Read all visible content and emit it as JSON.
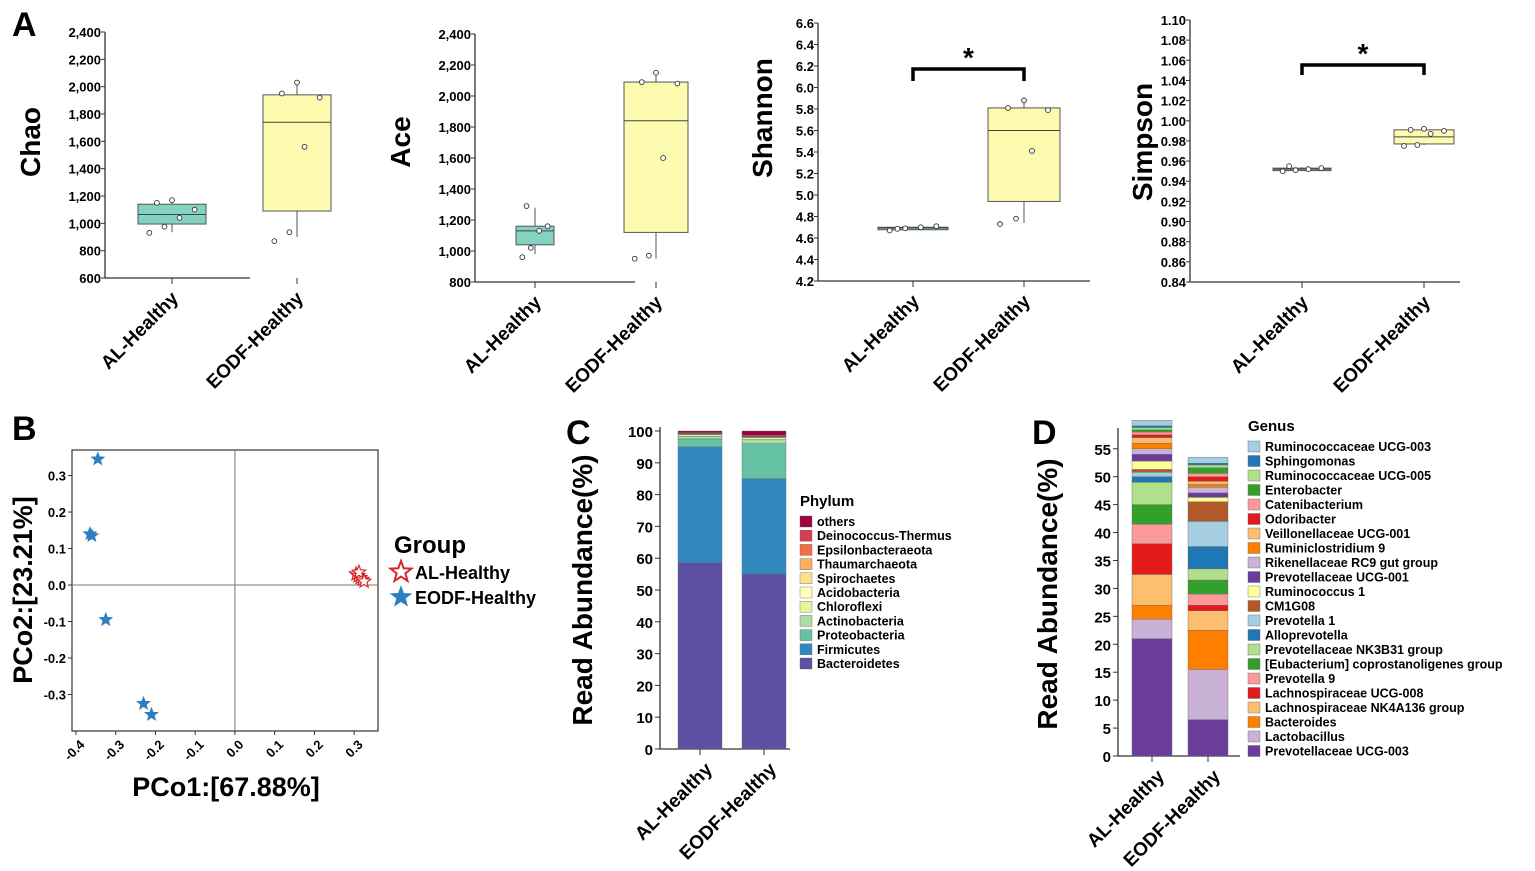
{
  "panels": {
    "A": "A",
    "B": "B",
    "C": "C",
    "D": "D"
  },
  "colors": {
    "al_box": "#84d2c2",
    "eodf_box": "#fdfbb0",
    "al_star": "#d62728",
    "eodf_star": "#2f7ebf"
  },
  "chart_data": [
    {
      "id": "chao",
      "type": "box",
      "ylabel": "Chao",
      "ylim": [
        600,
        2400
      ],
      "ticks": [
        600,
        800,
        1000,
        1200,
        1400,
        1600,
        1800,
        2000,
        2200,
        2400
      ],
      "categories": [
        "AL-Healthy",
        "EODF-Healthy"
      ],
      "boxes": [
        {
          "name": "AL-Healthy",
          "min": 935,
          "q1": 995,
          "median": 1065,
          "q3": 1140,
          "max": 1160,
          "points": [
            930,
            975,
            1040,
            1100,
            1150,
            1170
          ]
        },
        {
          "name": "EODF-Healthy",
          "min": 900,
          "q1": 1090,
          "median": 1740,
          "q3": 1940,
          "max": 2020,
          "points": [
            870,
            935,
            1560,
            1920,
            1950,
            2030
          ]
        }
      ]
    },
    {
      "id": "ace",
      "type": "box",
      "ylabel": "Ace",
      "ylim": [
        800,
        2400
      ],
      "ticks": [
        800,
        1000,
        1200,
        1400,
        1600,
        1800,
        2000,
        2200,
        2400
      ],
      "categories": [
        "AL-Healthy",
        "EODF-Healthy"
      ],
      "boxes": [
        {
          "name": "AL-Healthy",
          "min": 980,
          "q1": 1040,
          "median": 1130,
          "q3": 1160,
          "max": 1280,
          "points": [
            960,
            1020,
            1130,
            1160,
            1290
          ]
        },
        {
          "name": "EODF-Healthy",
          "min": 950,
          "q1": 1120,
          "median": 1840,
          "q3": 2090,
          "max": 2150,
          "points": [
            950,
            970,
            1600,
            2080,
            2090,
            2150
          ]
        }
      ]
    },
    {
      "id": "shannon",
      "type": "box",
      "ylabel": "Shannon",
      "ylim": [
        4.2,
        6.6
      ],
      "ticks": [
        "4.2",
        "4.4",
        "4.6",
        "4.8",
        "5.0",
        "5.2",
        "5.4",
        "5.6",
        "5.8",
        "6.0",
        "6.2",
        "6.4",
        "6.6"
      ],
      "categories": [
        "AL-Healthy",
        "EODF-Healthy"
      ],
      "significance": "*",
      "boxes": [
        {
          "name": "AL-Healthy",
          "min": 4.685,
          "q1": 4.685,
          "median": 4.693,
          "q3": 4.7,
          "max": 4.705,
          "points": [
            4.67,
            4.69,
            4.7,
            4.71,
            4.685
          ]
        },
        {
          "name": "EODF-Healthy",
          "min": 4.74,
          "q1": 4.94,
          "median": 5.6,
          "q3": 5.81,
          "max": 5.87,
          "points": [
            4.73,
            4.78,
            5.41,
            5.79,
            5.81,
            5.88
          ]
        }
      ]
    },
    {
      "id": "simpson",
      "type": "box",
      "ylabel": "Simpson",
      "ylim": [
        0.84,
        1.1
      ],
      "ticks": [
        "0.84",
        "0.86",
        "0.88",
        "0.90",
        "0.92",
        "0.94",
        "0.96",
        "0.98",
        "1.00",
        "1.02",
        "1.04",
        "1.06",
        "1.08",
        "1.10"
      ],
      "categories": [
        "AL-Healthy",
        "EODF-Healthy"
      ],
      "significance": "*",
      "boxes": [
        {
          "name": "AL-Healthy",
          "min": 0.951,
          "q1": 0.951,
          "median": 0.952,
          "q3": 0.953,
          "max": 0.954,
          "points": [
            0.95,
            0.951,
            0.952,
            0.953,
            0.955
          ]
        },
        {
          "name": "EODF-Healthy",
          "min": 0.976,
          "q1": 0.977,
          "median": 0.984,
          "q3": 0.991,
          "max": 0.992,
          "points": [
            0.975,
            0.976,
            0.987,
            0.99,
            0.991,
            0.992
          ]
        }
      ]
    },
    {
      "id": "pcoa",
      "type": "scatter",
      "xlabel": "PCo1:[67.88%]",
      "ylabel": "PCo2:[23.21%]",
      "xlim": [
        -0.41,
        0.36
      ],
      "ylim": [
        -0.4,
        0.37
      ],
      "xticks": [
        "-0.4",
        "-0.3",
        "-0.2",
        "-0.1",
        "0.0",
        "0.1",
        "0.2",
        "0.3"
      ],
      "yticks": [
        "-0.3",
        "-0.2",
        "-0.1",
        "0.0",
        "0.1",
        "0.2",
        "0.3"
      ],
      "legend_title": "Group",
      "series": [
        {
          "name": "AL-Healthy",
          "color": "#d62728",
          "marker": "open-star",
          "x": [
            0.305,
            0.31,
            0.315,
            0.32,
            0.312,
            0.325
          ],
          "y": [
            0.03,
            0.025,
            0.02,
            0.015,
            0.035,
            0.01
          ]
        },
        {
          "name": "EODF-Healthy",
          "color": "#2f7ebf",
          "marker": "filled-star",
          "x": [
            -0.345,
            -0.365,
            -0.36,
            -0.325,
            -0.23,
            -0.21
          ],
          "y": [
            0.345,
            0.14,
            0.135,
            -0.095,
            -0.325,
            -0.355
          ]
        }
      ]
    },
    {
      "id": "phylum",
      "type": "bar",
      "stacked": true,
      "ylabel": "Read Abundance(%)",
      "ylim": [
        0,
        100
      ],
      "yticks": [
        "0",
        "10",
        "20",
        "30",
        "40",
        "50",
        "60",
        "70",
        "80",
        "90",
        "100"
      ],
      "categories": [
        "AL-Healthy",
        "EODF-Healthy"
      ],
      "legend_title": "Phylum",
      "series": [
        {
          "name": "Bacteroidetes",
          "color": "#5e4fa2",
          "values": [
            58.5,
            55.0
          ]
        },
        {
          "name": "Firmicutes",
          "color": "#3288bd",
          "values": [
            36.5,
            30.0
          ]
        },
        {
          "name": "Proteobacteria",
          "color": "#66c2a5",
          "values": [
            2.5,
            11.0
          ]
        },
        {
          "name": "Actinobacteria",
          "color": "#abdda4",
          "values": [
            0.8,
            1.3
          ]
        },
        {
          "name": "Chloroflexi",
          "color": "#e6f598",
          "values": [
            0.5,
            0.6
          ]
        },
        {
          "name": "Acidobacteria",
          "color": "#ffffbf",
          "values": [
            0.2,
            0.2
          ]
        },
        {
          "name": "Spirochaetes",
          "color": "#fee08b",
          "values": [
            0.1,
            0.1
          ]
        },
        {
          "name": "Thaumarchaeota",
          "color": "#fdae61",
          "values": [
            0.1,
            0.1
          ]
        },
        {
          "name": "Epsilonbacteraeota",
          "color": "#f46d43",
          "values": [
            0.1,
            0.1
          ]
        },
        {
          "name": "Deinococcus-Thermus",
          "color": "#d53e4f",
          "values": [
            0.2,
            0.3
          ]
        },
        {
          "name": "others",
          "color": "#9e0142",
          "values": [
            0.5,
            1.3
          ]
        }
      ]
    },
    {
      "id": "genus",
      "type": "bar",
      "stacked": true,
      "ylabel": "Read Abundance(%)",
      "ylim": [
        0,
        58
      ],
      "yticks": [
        "0",
        "5",
        "10",
        "15",
        "20",
        "25",
        "30",
        "35",
        "40",
        "45",
        "50",
        "55"
      ],
      "categories": [
        "AL-Healthy",
        "EODF-Healthy"
      ],
      "legend_title": "Genus",
      "series": [
        {
          "name": "Prevotellaceae UCG-003",
          "color": "#6a3d9a",
          "values": [
            21.0,
            6.5
          ]
        },
        {
          "name": "Lactobacillus",
          "color": "#cab2d6",
          "values": [
            3.5,
            9.0
          ]
        },
        {
          "name": "Bacteroides",
          "color": "#ff7f00",
          "values": [
            2.5,
            7.0
          ]
        },
        {
          "name": "Lachnospiraceae NK4A136 group",
          "color": "#fdbf6f",
          "values": [
            5.5,
            3.5
          ]
        },
        {
          "name": "Lachnospiraceae UCG-008",
          "color": "#e31a1c",
          "values": [
            5.5,
            1.0
          ]
        },
        {
          "name": "Prevotella 9",
          "color": "#fb9a99",
          "values": [
            3.5,
            2.0
          ]
        },
        {
          "name": "[Eubacterium] coprostanoligenes group",
          "color": "#33a02c",
          "values": [
            3.5,
            2.5
          ]
        },
        {
          "name": "Prevotellaceae NK3B31 group",
          "color": "#b2df8a",
          "values": [
            4.0,
            2.0
          ]
        },
        {
          "name": "Alloprevotella",
          "color": "#1f78b4",
          "values": [
            1.0,
            4.0
          ]
        },
        {
          "name": "Prevotella 1",
          "color": "#a6cee3",
          "values": [
            0.8,
            4.5
          ]
        },
        {
          "name": "CM1G08",
          "color": "#b15928",
          "values": [
            0.5,
            3.5
          ]
        },
        {
          "name": "Ruminococcus 1",
          "color": "#ffff99",
          "values": [
            1.5,
            0.8
          ]
        },
        {
          "name": "Prevotellaceae UCG-001",
          "color": "#6a3d9a",
          "values": [
            1.2,
            0.8
          ]
        },
        {
          "name": "Rikenellaceae RC9 gut group",
          "color": "#cab2d6",
          "values": [
            1.0,
            1.0
          ]
        },
        {
          "name": "Ruminiclostridium 9",
          "color": "#ff7f00",
          "values": [
            1.0,
            0.5
          ]
        },
        {
          "name": "Veillonellaceae UCG-001",
          "color": "#fdbf6f",
          "values": [
            1.0,
            0.6
          ]
        },
        {
          "name": "Odoribacter",
          "color": "#e31a1c",
          "values": [
            0.5,
            0.8
          ]
        },
        {
          "name": "Catenibacterium",
          "color": "#fb9a99",
          "values": [
            0.5,
            0.6
          ]
        },
        {
          "name": "Enterobacter",
          "color": "#33a02c",
          "values": [
            0.4,
            1.0
          ]
        },
        {
          "name": "Ruminococcaceae UCG-005",
          "color": "#b2df8a",
          "values": [
            0.4,
            0.5
          ]
        },
        {
          "name": "Sphingomonas",
          "color": "#1f78b4",
          "values": [
            0.3,
            0.3
          ]
        },
        {
          "name": "Ruminococcaceae UCG-003",
          "color": "#a6cee3",
          "values": [
            1.0,
            1.1
          ]
        }
      ]
    }
  ]
}
